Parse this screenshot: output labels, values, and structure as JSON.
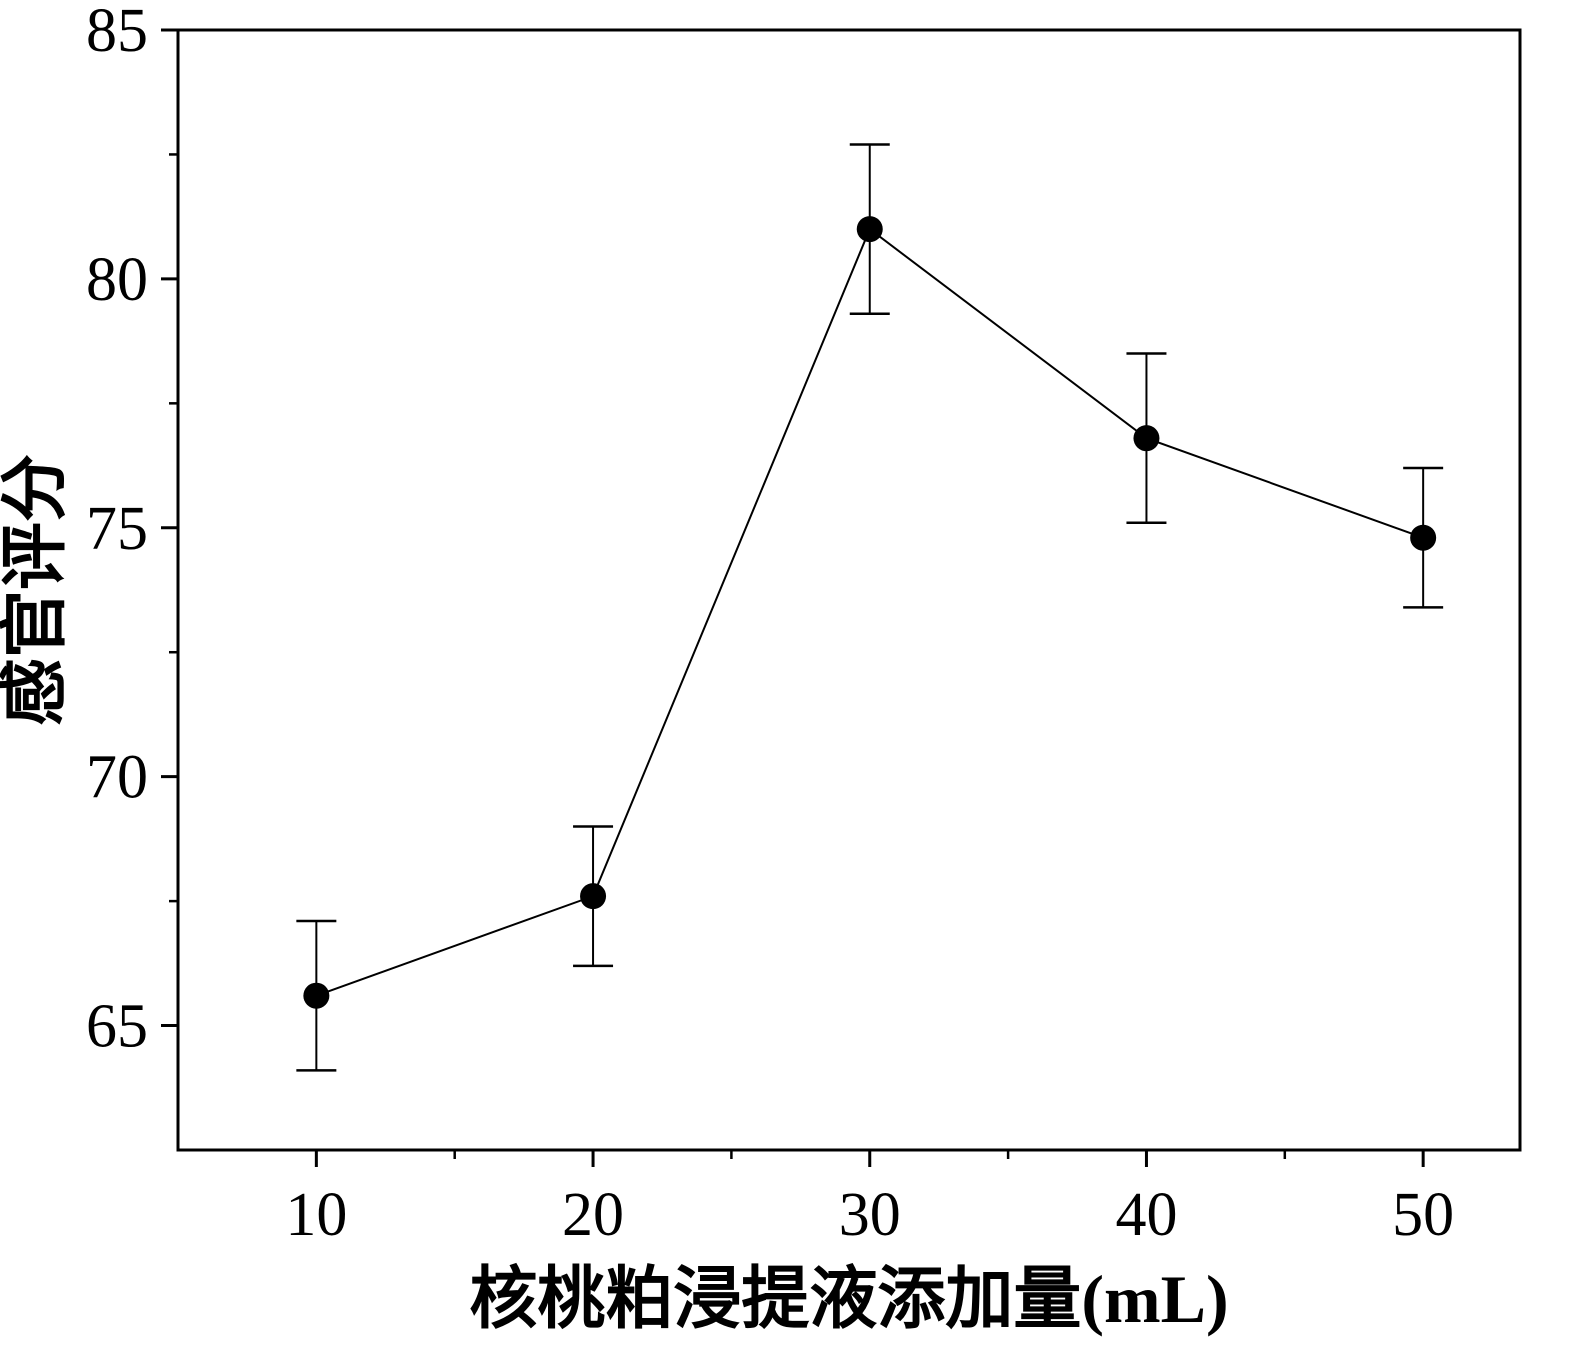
{
  "chart_data": {
    "type": "line",
    "title": "",
    "xlabel": "核桃粕浸提液添加量(mL)",
    "ylabel": "感官评分",
    "x": [
      10,
      20,
      30,
      40,
      50
    ],
    "series": [
      {
        "name": "感官评分",
        "values": [
          65.6,
          67.6,
          81.0,
          76.8,
          74.8
        ],
        "errors": [
          1.5,
          1.4,
          1.7,
          1.7,
          1.4
        ]
      }
    ],
    "xlim": [
      5,
      53.5
    ],
    "ylim": [
      62.5,
      85
    ],
    "xticks": [
      10,
      20,
      30,
      40,
      50
    ],
    "yticks": [
      65,
      70,
      75,
      80,
      85
    ],
    "x_minor_ticks": [
      15,
      25,
      35,
      45
    ],
    "y_minor_ticks": [
      67.5,
      72.5,
      77.5,
      82.5
    ],
    "grid": false,
    "legend": "none",
    "marker": "circle",
    "error_bars": true,
    "colors": {
      "line": "#000000",
      "marker": "#000000",
      "axis": "#000000",
      "background": "#ffffff"
    }
  }
}
